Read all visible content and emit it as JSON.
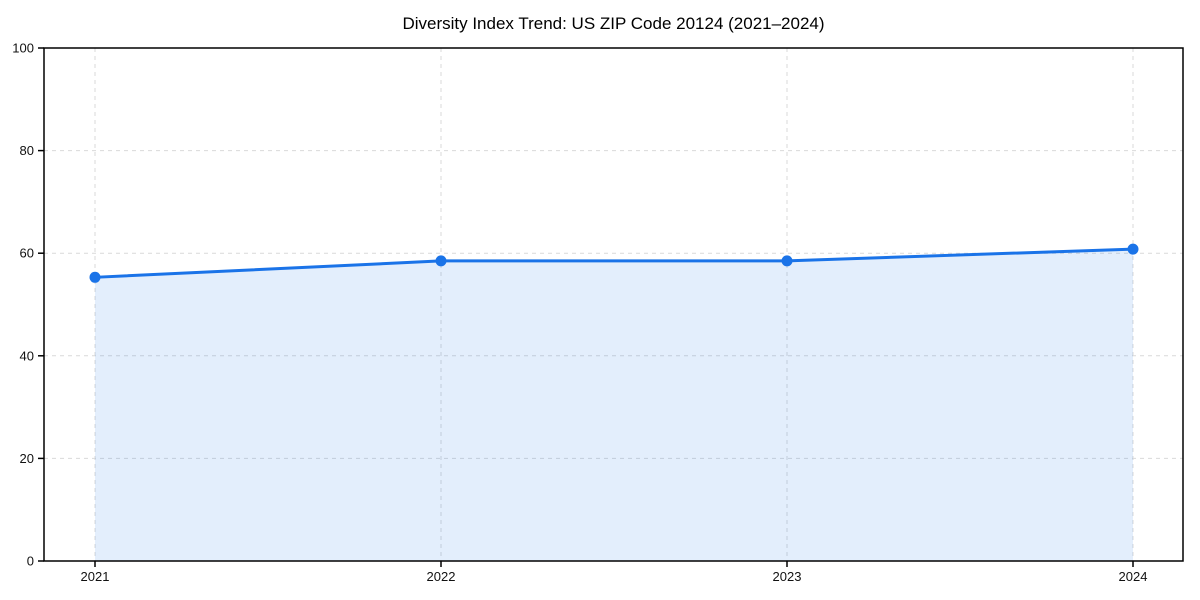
{
  "chart_data": {
    "type": "area",
    "title": "Diversity Index Trend: US ZIP Code 20124 (2021–2024)",
    "categories": [
      "2021",
      "2022",
      "2023",
      "2024"
    ],
    "values": [
      55.3,
      58.5,
      58.5,
      60.8
    ],
    "xlabel": "",
    "ylabel": "",
    "ylim": [
      0,
      100
    ],
    "yticks": [
      0,
      20,
      40,
      60,
      80,
      100
    ],
    "grid": true,
    "grid_style": "dashed",
    "legend": false,
    "colors": {
      "line": "#1a73e8",
      "marker": "#1a73e8",
      "fill": "rgba(26,115,232,0.12)",
      "gridline": "#d9d9d9",
      "axis_frame": "#000000",
      "tick_label": "#111111",
      "title": "#000000",
      "background": "#ffffff"
    },
    "line_width": 3,
    "marker_radius": 5.5
  }
}
